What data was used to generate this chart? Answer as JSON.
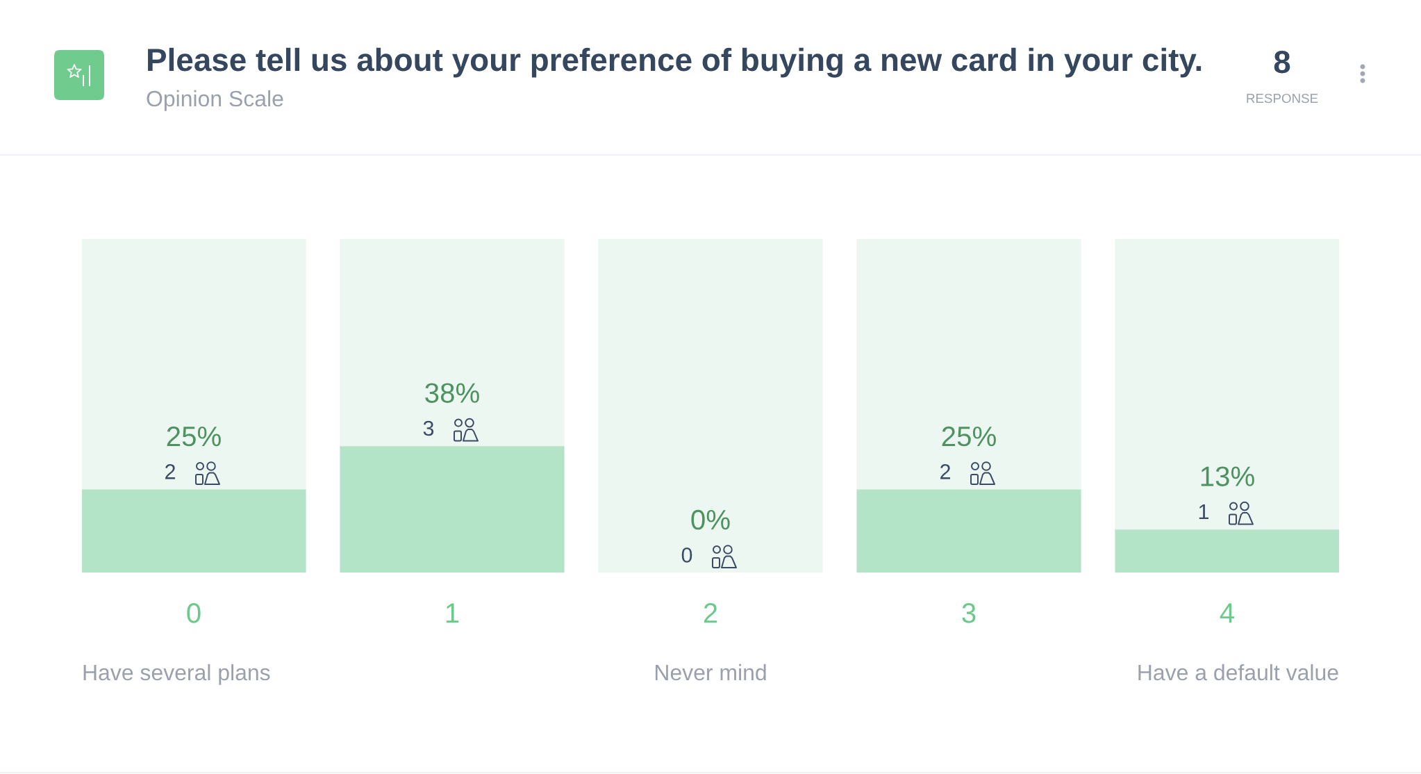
{
  "chart_data": {
    "type": "bar",
    "title": "Please tell us about your preference of buying a new card in your city.",
    "subtitle": "Opinion Scale",
    "categories": [
      "0",
      "1",
      "2",
      "3",
      "4"
    ],
    "stacked": true,
    "ylim": [
      0,
      100
    ],
    "tick_labels": "x",
    "series": [
      {
        "color": "#b3e4c7",
        "values": [
          25,
          38,
          0,
          25,
          13
        ],
        "value_labels": [
          "25%",
          "38%",
          "0%",
          "25%",
          "13%"
        ]
      },
      {
        "color": "#ecf7f1",
        "values": [
          75,
          62,
          100,
          75,
          87
        ]
      }
    ],
    "annotations": [
      "8",
      "RESPONSE",
      "2",
      "3",
      "0",
      "2",
      "1",
      "Have several plans",
      "Never mind",
      "Have a default value"
    ]
  }
}
